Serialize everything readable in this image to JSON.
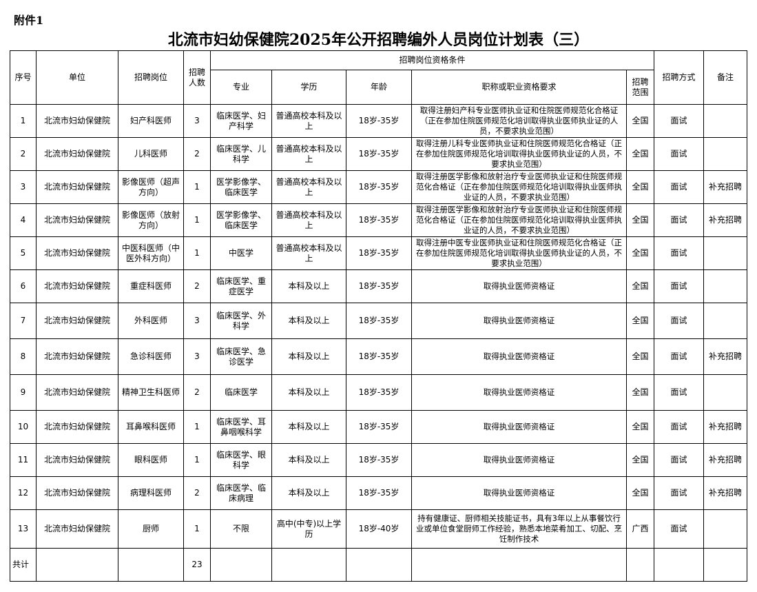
{
  "attachment": "附件1",
  "title": "北流市妇幼保健院2025年公开招聘编外人员岗位计划表（三）",
  "headers": {
    "seq": "序号",
    "unit": "单位",
    "position": "招聘岗位",
    "count": "招聘人数",
    "conditions": "招聘岗位资格条件",
    "major": "专业",
    "education": "学历",
    "age": "年龄",
    "qualification": "职称或职业资格要求",
    "scope": "招聘范围",
    "method": "招聘方式",
    "note": "备注"
  },
  "rows": [
    {
      "seq": "1",
      "unit": "北流市妇幼保健院",
      "position": "妇产科医师",
      "count": "3",
      "major": "临床医学、妇产科学",
      "education": "普通高校本科及以上",
      "age": "18岁-35岁",
      "qualification": "取得注册妇产科专业医师执业证和住院医师规范化合格证（正在参加住院医师规范化培训取得执业医师执业证的人员，不要求执业范围）",
      "scope": "全国",
      "method": "面试",
      "note": ""
    },
    {
      "seq": "2",
      "unit": "北流市妇幼保健院",
      "position": "儿科医师",
      "count": "2",
      "major": "临床医学、儿科学",
      "education": "普通高校本科及以上",
      "age": "18岁-35岁",
      "qualification": "取得注册儿科专业医师执业证和住院医师规范化合格证（正在参加住院医师规范化培训取得执业医师执业证的人员，不要求执业范围）",
      "scope": "全国",
      "method": "面试",
      "note": ""
    },
    {
      "seq": "3",
      "unit": "北流市妇幼保健院",
      "position": "影像医师（超声方向）",
      "count": "1",
      "major": "医学影像学、临床医学",
      "education": "普通高校本科及以上",
      "age": "18岁-35岁",
      "qualification": "取得注册医学影像和放射治疗专业医师执业证和住院医师规范化合格证（正在参加住院医师规范化培训取得执业医师执业证的人员，不要求执业范围）",
      "scope": "全国",
      "method": "面试",
      "note": "补充招聘"
    },
    {
      "seq": "4",
      "unit": "北流市妇幼保健院",
      "position": "影像医师（放射方向）",
      "count": "1",
      "major": "医学影像学、临床医学",
      "education": "普通高校本科及以上",
      "age": "18岁-35岁",
      "qualification": "取得注册医学影像和放射治疗专业医师执业证和住院医师规范化合格证（正在参加住院医师规范化培训取得执业医师执业证的人员，不要求执业范围）",
      "scope": "全国",
      "method": "面试",
      "note": "补充招聘"
    },
    {
      "seq": "5",
      "unit": "北流市妇幼保健院",
      "position": "中医科医师（中医外科方向）",
      "count": "1",
      "major": "中医学",
      "education": "普通高校本科及以上",
      "age": "18岁-35岁",
      "qualification": "取得注册中医专业医师执业证和住院医师规范化合格证（正在参加住院医师规范化培训取得执业医师执业证的人员，不要求执业范围）",
      "scope": "全国",
      "method": "面试",
      "note": ""
    },
    {
      "seq": "6",
      "unit": "北流市妇幼保健院",
      "position": "重症科医师",
      "count": "2",
      "major": "临床医学、重症医学",
      "education": "本科及以上",
      "age": "18岁-35岁",
      "qualification": "取得执业医师资格证",
      "scope": "全国",
      "method": "面试",
      "note": ""
    },
    {
      "seq": "7",
      "unit": "北流市妇幼保健院",
      "position": "外科医师",
      "count": "3",
      "major": "临床医学、外科学",
      "education": "本科及以上",
      "age": "18岁-35岁",
      "qualification": "取得执业医师资格证",
      "scope": "全国",
      "method": "面试",
      "note": ""
    },
    {
      "seq": "8",
      "unit": "北流市妇幼保健院",
      "position": "急诊科医师",
      "count": "3",
      "major": "临床医学、急诊医学",
      "education": "本科及以上",
      "age": "18岁-35岁",
      "qualification": "取得执业医师资格证",
      "scope": "全国",
      "method": "面试",
      "note": "补充招聘"
    },
    {
      "seq": "9",
      "unit": "北流市妇幼保健院",
      "position": "精神卫生科医师",
      "count": "2",
      "major": "临床医学",
      "education": "本科及以上",
      "age": "18岁-35岁",
      "qualification": "取得执业医师资格证",
      "scope": "全国",
      "method": "面试",
      "note": ""
    },
    {
      "seq": "10",
      "unit": "北流市妇幼保健院",
      "position": "耳鼻喉科医师",
      "count": "1",
      "major": "临床医学、耳鼻咽喉科学",
      "education": "本科及以上",
      "age": "18岁-35岁",
      "qualification": "取得执业医师资格证",
      "scope": "全国",
      "method": "面试",
      "note": "补充招聘"
    },
    {
      "seq": "11",
      "unit": "北流市妇幼保健院",
      "position": "眼科医师",
      "count": "1",
      "major": "临床医学、眼科学",
      "education": "本科及以上",
      "age": "18岁-35岁",
      "qualification": "取得执业医师资格证",
      "scope": "全国",
      "method": "面试",
      "note": "补充招聘"
    },
    {
      "seq": "12",
      "unit": "北流市妇幼保健院",
      "position": "病理科医师",
      "count": "2",
      "major": "临床医学、临床病理",
      "education": "本科及以上",
      "age": "18岁-35岁",
      "qualification": "取得执业医师资格证",
      "scope": "全国",
      "method": "面试",
      "note": "补充招聘"
    },
    {
      "seq": "13",
      "unit": "北流市妇幼保健院",
      "position": "厨师",
      "count": "1",
      "major": "不限",
      "education": "高中(中专)以上学历",
      "age": "18岁-40岁",
      "qualification": "持有健康证、厨师相关技能证书，具有3年以上从事餐饮行业或单位食堂厨师工作经验，熟悉本地菜肴加工、切配、烹饪制作技术",
      "scope": "广西",
      "method": "面试",
      "note": ""
    }
  ],
  "total": {
    "label": "共计",
    "count": "23"
  }
}
